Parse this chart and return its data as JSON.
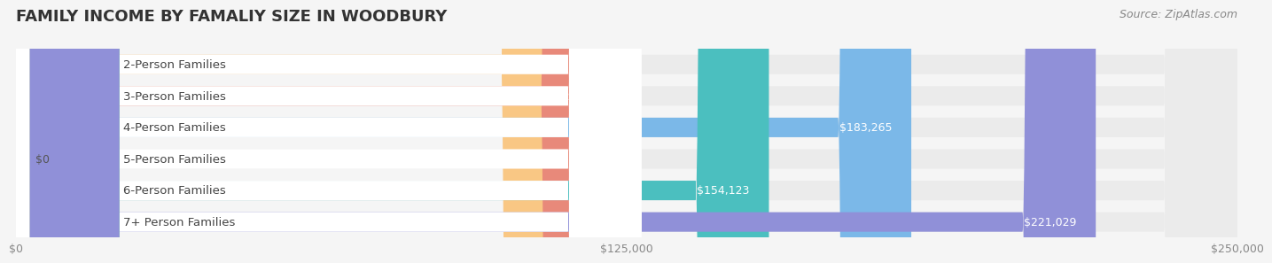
{
  "title": "FAMILY INCOME BY FAMALIY SIZE IN WOODBURY",
  "source": "Source: ZipAtlas.com",
  "categories": [
    "2-Person Families",
    "3-Person Families",
    "4-Person Families",
    "5-Person Families",
    "6-Person Families",
    "7+ Person Families"
  ],
  "values": [
    114240,
    122375,
    183265,
    0,
    154123,
    221029
  ],
  "bar_colors": [
    "#F9C784",
    "#E8897A",
    "#7BB8E8",
    "#C9A0DC",
    "#4BBFBF",
    "#9090D8"
  ],
  "label_colors": [
    "#555555",
    "#555555",
    "#ffffff",
    "#555555",
    "#ffffff",
    "#ffffff"
  ],
  "max_value": 250000,
  "x_ticks": [
    0,
    125000,
    250000
  ],
  "x_tick_labels": [
    "$0",
    "$125,000",
    "$250,000"
  ],
  "background_color": "#f5f5f5",
  "bar_bg_color": "#ebebeb",
  "title_fontsize": 13,
  "label_fontsize": 9.5,
  "value_fontsize": 9,
  "source_fontsize": 9
}
